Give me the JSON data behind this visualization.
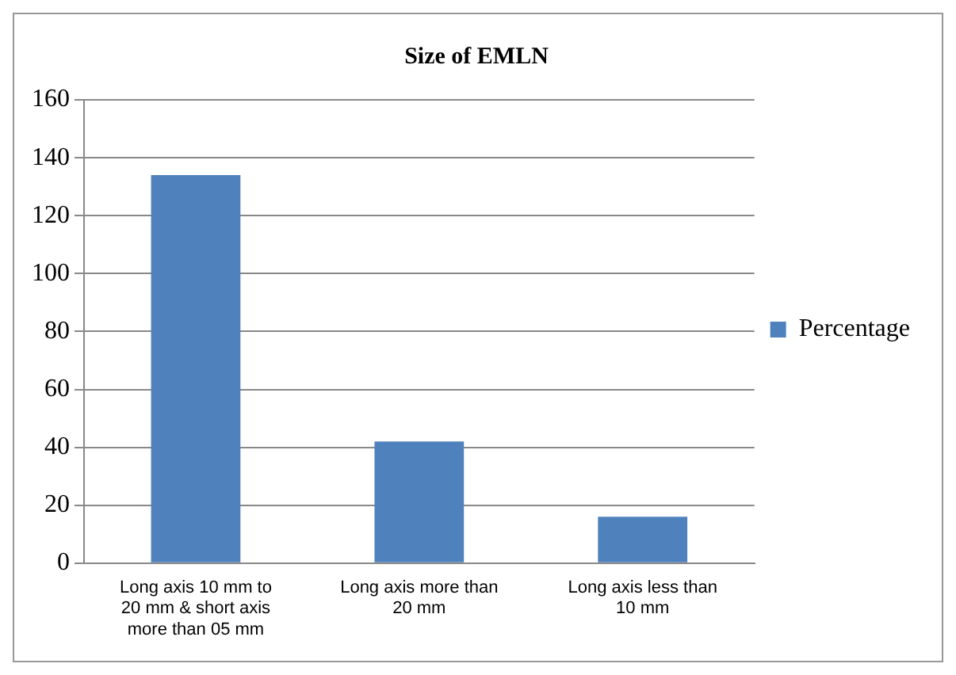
{
  "chart_data": {
    "type": "bar",
    "title": "Size of EMLN",
    "categories": [
      "Long axis 10 mm to 20 mm & short axis more than 05 mm",
      "Long axis more than 20 mm",
      "Long axis less than 10 mm"
    ],
    "series": [
      {
        "name": "Percentage",
        "color": "#4f81bd",
        "values": [
          134,
          42,
          16
        ]
      }
    ],
    "ylim": [
      0,
      160
    ],
    "yticks": [
      0,
      20,
      40,
      60,
      80,
      100,
      120,
      140,
      160
    ],
    "grid": "y",
    "legend": "right"
  }
}
